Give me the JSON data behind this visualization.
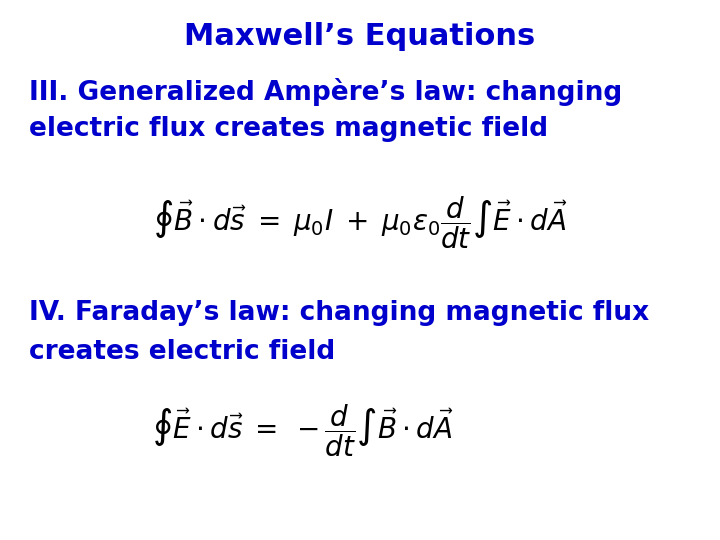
{
  "title": "Maxwell’s Equations",
  "title_color": "#0000CC",
  "title_fontsize": 22,
  "background_color": "#ffffff",
  "text_color": "#0000CC",
  "eq_color": "#000000",
  "label_III_line1": "III. Generalized Ampère’s law: changing",
  "label_III_line2": "electric flux creates magnetic field",
  "label_IV_line1": "IV. Faraday’s law: changing magnetic flux",
  "label_IV_line2": "creates electric field",
  "label_fontsize": 19,
  "eq_fontsize": 20,
  "fig_width": 7.2,
  "fig_height": 5.4,
  "dpi": 100
}
